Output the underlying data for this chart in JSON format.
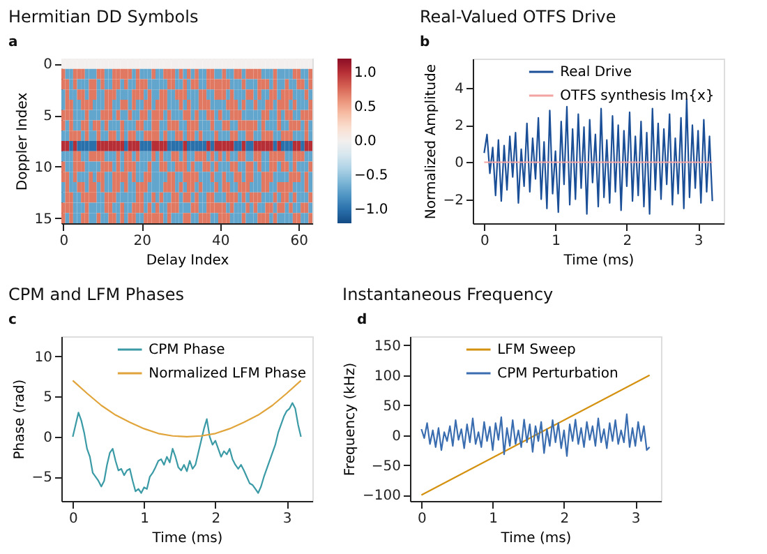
{
  "chart_data": [
    {
      "type": "heatmap",
      "title": "Hermitian DD Symbols",
      "xlabel": "Delay Index",
      "ylabel": "Doppler Index",
      "annotations": [
        "a"
      ],
      "xlim": [
        -0.5,
        63.5
      ],
      "xticks": [
        0,
        20,
        40,
        60
      ],
      "ylim": [
        15.5,
        -0.5
      ],
      "yticks": [
        0,
        5,
        10,
        15
      ],
      "clim": [
        -1.2,
        1.2
      ],
      "cticks": [
        {
          "value": -1,
          "label": "−1.0"
        },
        {
          "value": -0.5,
          "label": "−0.5"
        },
        {
          "value": 0,
          "label": "0.0"
        },
        {
          "value": 0.5,
          "label": "0.5"
        },
        {
          "value": 1,
          "label": "1.0"
        }
      ],
      "cells": [
        [
          0,
          0,
          0,
          0,
          0,
          0,
          0,
          0,
          0,
          0,
          0,
          0,
          0,
          0,
          0,
          0,
          0,
          0,
          0,
          0,
          0,
          0,
          0,
          0,
          0,
          0,
          0,
          0,
          0,
          0,
          0,
          0,
          0,
          0,
          0,
          0,
          0,
          0,
          0,
          0,
          0,
          0,
          0,
          0,
          0,
          0,
          0,
          0,
          0,
          0,
          0,
          0,
          0,
          0,
          0,
          0,
          0,
          0,
          0,
          0,
          0,
          0,
          0,
          0
        ],
        [
          0.7,
          -0.7,
          -0.7,
          0.7,
          0.7,
          0.7,
          -0.7,
          -0.7,
          -0.7,
          0.7,
          0.7,
          -0.7,
          -0.7,
          0.7,
          0.7,
          0.7,
          0.7,
          0.7,
          -0.7,
          0.7,
          -0.7,
          -0.7,
          -0.7,
          0.7,
          -0.7,
          -0.7,
          0.7,
          0.7,
          0.7,
          -0.7,
          0.7,
          -0.7,
          0.7,
          -0.7,
          0.7,
          -0.7,
          -0.7,
          0.7,
          0.7,
          -0.7,
          -0.7,
          0.7,
          -0.7,
          -0.7,
          0.7,
          0.7,
          -0.7,
          0.7,
          0.7,
          0.7,
          0.7,
          -0.7,
          -0.7,
          -0.7,
          0.7,
          -0.7,
          -0.7,
          -0.7,
          -0.7,
          0.7,
          0.7,
          -0.7,
          -0.7,
          0.7
        ],
        [
          0.7,
          0.7,
          -0.7,
          0.7,
          -0.7,
          -0.7,
          -0.7,
          0.7,
          0.7,
          -0.7,
          0.7,
          -0.7,
          -0.7,
          0.7,
          0.7,
          -0.7,
          0.7,
          -0.7,
          -0.7,
          0.7,
          0.7,
          0.7,
          -0.7,
          -0.7,
          -0.7,
          -0.7,
          -0.7,
          0.7,
          0.7,
          -0.7,
          -0.7,
          0.7,
          -0.7,
          0.7,
          0.7,
          -0.7,
          -0.7,
          0.7,
          0.7,
          0.7,
          0.7,
          0.7,
          0.7,
          -0.7,
          -0.7,
          -0.7,
          0.7,
          -0.7,
          -0.7,
          -0.7,
          0.7,
          0.7,
          0.7,
          -0.7,
          0.7,
          -0.7,
          -0.7,
          0.7,
          -0.7,
          -0.7,
          0.7,
          0.7,
          -0.7,
          0.7
        ],
        [
          -0.7,
          0.7,
          -0.7,
          -0.7,
          0.7,
          0.7,
          -0.7,
          0.7,
          0.7,
          -0.7,
          -0.7,
          0.7,
          0.7,
          0.7,
          -0.7,
          -0.7,
          -0.7,
          -0.7,
          0.7,
          0.7,
          0.7,
          -0.7,
          0.7,
          -0.7,
          -0.7,
          0.7,
          0.7,
          -0.7,
          -0.7,
          0.7,
          0.7,
          0.7,
          -0.7,
          -0.7,
          -0.7,
          0.7,
          0.7,
          -0.7,
          -0.7,
          0.7,
          0.7,
          0.7,
          -0.7,
          0.7,
          -0.7,
          -0.7,
          -0.7,
          0.7,
          0.7,
          -0.7,
          0.7,
          -0.7,
          -0.7,
          0.7,
          0.7,
          -0.7,
          0.7,
          0.7,
          0.7,
          -0.7,
          -0.7,
          -0.7,
          0.7,
          -0.7
        ],
        [
          -0.7,
          0.7,
          0.7,
          -0.7,
          -0.7,
          0.7,
          0.7,
          0.7,
          -0.7,
          -0.7,
          -0.7,
          0.7,
          0.7,
          -0.7,
          -0.7,
          0.7,
          0.7,
          -0.7,
          0.7,
          -0.7,
          -0.7,
          0.7,
          0.7,
          -0.7,
          0.7,
          0.7,
          0.7,
          -0.7,
          -0.7,
          -0.7,
          0.7,
          -0.7,
          0.7,
          -0.7,
          -0.7,
          0.7,
          0.7,
          0.7,
          -0.7,
          -0.7,
          -0.7,
          -0.7,
          0.7,
          0.7,
          0.7,
          -0.7,
          0.7,
          -0.7,
          -0.7,
          0.7,
          -0.7,
          -0.7,
          0.7,
          0.7,
          -0.7,
          0.7,
          0.7,
          0.7,
          -0.7,
          0.7,
          -0.7,
          -0.7,
          -0.7,
          0.7
        ],
        [
          0.7,
          0.7,
          0.7,
          -0.7,
          -0.7,
          -0.7,
          0.7,
          -0.7,
          -0.7,
          -0.7,
          0.7,
          0.7,
          0.7,
          -0.7,
          0.7,
          -0.7,
          -0.7,
          0.7,
          -0.7,
          -0.7,
          0.7,
          0.7,
          -0.7,
          0.7,
          0.7,
          0.7,
          -0.7,
          0.7,
          -0.7,
          -0.7,
          -0.7,
          0.7,
          0.7,
          -0.7,
          0.7,
          -0.7,
          -0.7,
          0.7,
          0.7,
          -0.7,
          0.7,
          -0.7,
          -0.7,
          0.7,
          0.7,
          0.7,
          -0.7,
          -0.7,
          -0.7,
          -0.7,
          -0.7,
          0.7,
          0.7,
          -0.7,
          -0.7,
          0.7,
          -0.7,
          0.7,
          0.7,
          -0.7,
          -0.7,
          0.7,
          0.7,
          0.7
        ],
        [
          0.7,
          -0.7,
          0.7,
          -0.7,
          -0.7,
          0.7,
          0.7,
          -0.7,
          0.7,
          0.7,
          -0.7,
          0.7,
          -0.7,
          -0.7,
          -0.7,
          0.7,
          -0.7,
          -0.7,
          -0.7,
          0.7,
          0.7,
          -0.7,
          -0.7,
          0.7,
          0.7,
          -0.7,
          -0.7,
          0.7,
          0.7,
          0.7,
          -0.7,
          -0.7,
          0.7,
          0.7,
          0.7,
          -0.7,
          -0.7,
          -0.7,
          0.7,
          -0.7,
          -0.7,
          0.7,
          0.7,
          -0.7,
          -0.7,
          0.7,
          0.7,
          0.7,
          0.7,
          0.7,
          -0.7,
          0.7,
          -0.7,
          -0.7,
          -0.7,
          0.7,
          -0.7,
          -0.7,
          0.7,
          0.7,
          0.7,
          -0.7,
          0.7,
          -0.7
        ],
        [
          -0.7,
          -0.7,
          0.7,
          0.7,
          0.7,
          -0.7,
          0.7,
          -0.7,
          -0.7,
          0.7,
          -0.7,
          -0.7,
          0.7,
          0.7,
          -0.7,
          0.7,
          -0.7,
          0.7,
          0.7,
          -0.7,
          -0.7,
          0.7,
          0.7,
          0.7,
          0.7,
          -0.7,
          0.7,
          -0.7,
          -0.7,
          0.7,
          0.7,
          -0.7,
          0.7,
          0.7,
          -0.7,
          0.7,
          -0.7,
          -0.7,
          -0.7,
          0.7,
          -0.7,
          -0.7,
          -0.7,
          0.7,
          0.7,
          -0.7,
          -0.7,
          0.7,
          0.7,
          -0.7,
          -0.7,
          0.7,
          0.7,
          0.7,
          -0.7,
          -0.7,
          0.7,
          0.7,
          0.7,
          -0.7,
          -0.7,
          -0.7,
          0.7,
          -0.7
        ],
        [
          1,
          1,
          -1,
          1,
          -1,
          -1,
          -1,
          -1,
          -1,
          1,
          1,
          1,
          1,
          1,
          1,
          1,
          -1,
          1,
          1,
          1,
          -1,
          -1,
          -1,
          1,
          1,
          1,
          1,
          -1,
          -1,
          -1,
          -1,
          1,
          -1,
          -1,
          -1,
          -1,
          -1,
          1,
          -1,
          1,
          1,
          1,
          1,
          1,
          -1,
          -1,
          1,
          -1,
          -1,
          1,
          1,
          1,
          1,
          1,
          -1,
          1,
          -1,
          -1,
          -1,
          1,
          1,
          -1,
          1,
          1
        ],
        [
          -0.7,
          -0.7,
          -0.7,
          0.7,
          0.7,
          -0.7,
          -0.7,
          0.7,
          0.7,
          0.7,
          0.7,
          -0.7,
          -0.7,
          -0.7,
          0.7,
          -0.7,
          0.7,
          0.7,
          -0.7,
          0.7,
          -0.7,
          -0.7,
          -0.7,
          0.7,
          -0.7,
          0.7,
          -0.7,
          -0.7,
          0.7,
          0.7,
          -0.7,
          0.7,
          -0.7,
          -0.7,
          0.7,
          0.7,
          0.7,
          -0.7,
          0.7,
          -0.7,
          0.7,
          -0.7,
          0.7,
          -0.7,
          -0.7,
          0.7,
          0.7,
          -0.7,
          -0.7,
          0.7,
          0.7,
          -0.7,
          -0.7,
          0.7,
          0.7,
          0.7,
          0.7,
          -0.7,
          -0.7,
          0.7,
          0.7,
          0.7,
          -0.7,
          -0.7
        ],
        [
          0.7,
          -0.7,
          -0.7,
          0.7,
          0.7,
          0.7,
          -0.7,
          -0.7,
          -0.7,
          -0.7,
          0.7,
          0.7,
          0.7,
          -0.7,
          0.7,
          -0.7,
          0.7,
          0.7,
          0.7,
          -0.7,
          -0.7,
          -0.7,
          0.7,
          -0.7,
          -0.7,
          0.7,
          0.7,
          -0.7,
          -0.7,
          0.7,
          0.7,
          0.7,
          -0.7,
          0.7,
          -0.7,
          -0.7,
          0.7,
          0.7,
          -0.7,
          0.7,
          -0.7,
          -0.7,
          -0.7,
          0.7,
          0.7,
          -0.7,
          -0.7,
          0.7,
          0.7,
          -0.7,
          0.7,
          -0.7,
          -0.7,
          0.7,
          0.7,
          -0.7,
          0.7,
          0.7,
          -0.7,
          0.7,
          -0.7,
          -0.7,
          -0.7,
          0.7
        ],
        [
          0.7,
          0.7,
          -0.7,
          0.7,
          -0.7,
          -0.7,
          -0.7,
          0.7,
          -0.7,
          0.7,
          0.7,
          -0.7,
          -0.7,
          0.7,
          0.7,
          0.7,
          0.7,
          -0.7,
          0.7,
          -0.7,
          -0.7,
          0.7,
          0.7,
          -0.7,
          -0.7,
          -0.7,
          -0.7,
          0.7,
          0.7,
          -0.7,
          -0.7,
          0.7,
          0.7,
          0.7,
          0.7,
          -0.7,
          -0.7,
          -0.7,
          0.7,
          -0.7,
          -0.7,
          0.7,
          -0.7,
          -0.7,
          0.7,
          0.7,
          -0.7,
          0.7,
          0.7,
          -0.7,
          -0.7,
          0.7,
          0.7,
          0.7,
          -0.7,
          -0.7,
          -0.7,
          -0.7,
          0.7,
          0.7,
          0.7,
          -0.7,
          0.7,
          -0.7
        ],
        [
          -0.7,
          0.7,
          -0.7,
          -0.7,
          0.7,
          0.7,
          -0.7,
          0.7,
          0.7,
          -0.7,
          0.7,
          -0.7,
          -0.7,
          0.7,
          0.7,
          -0.7,
          0.7,
          -0.7,
          -0.7,
          0.7,
          0.7,
          0.7,
          -0.7,
          -0.7,
          -0.7,
          -0.7,
          0.7,
          0.7,
          0.7,
          -0.7,
          0.7,
          -0.7,
          0.7,
          0.7,
          -0.7,
          0.7,
          -0.7,
          -0.7,
          -0.7,
          0.7,
          -0.7,
          0.7,
          0.7,
          -0.7,
          -0.7,
          0.7,
          0.7,
          0.7,
          -0.7,
          -0.7,
          -0.7,
          0.7,
          0.7,
          -0.7,
          -0.7,
          0.7,
          0.7,
          0.7,
          0.7,
          -0.7,
          -0.7,
          -0.7,
          0.7,
          -0.7
        ],
        [
          -0.7,
          0.7,
          0.7,
          -0.7,
          -0.7,
          0.7,
          0.7,
          0.7,
          0.7,
          -0.7,
          -0.7,
          0.7,
          0.7,
          0.7,
          -0.7,
          -0.7,
          -0.7,
          -0.7,
          -0.7,
          0.7,
          0.7,
          -0.7,
          -0.7,
          0.7,
          -0.7,
          0.7,
          -0.7,
          -0.7,
          0.7,
          0.7,
          -0.7,
          0.7,
          0.7,
          -0.7,
          0.7,
          -0.7,
          -0.7,
          0.7,
          0.7,
          -0.7,
          -0.7,
          -0.7,
          0.7,
          0.7,
          0.7,
          -0.7,
          0.7,
          -0.7,
          0.7,
          0.7,
          0.7,
          -0.7,
          -0.7,
          -0.7,
          0.7,
          -0.7,
          0.7,
          0.7,
          -0.7,
          0.7,
          -0.7,
          -0.7,
          -0.7,
          0.7
        ],
        [
          0.7,
          0.7,
          0.7,
          -0.7,
          -0.7,
          -0.7,
          0.7,
          -0.7,
          -0.7,
          -0.7,
          -0.7,
          0.7,
          0.7,
          -0.7,
          -0.7,
          0.7,
          -0.7,
          -0.7,
          0.7,
          0.7,
          0.7,
          -0.7,
          0.7,
          -0.7,
          0.7,
          -0.7,
          -0.7,
          0.7,
          0.7,
          0.7,
          -0.7,
          -0.7,
          -0.7,
          0.7,
          0.7,
          -0.7,
          -0.7,
          0.7,
          0.7,
          0.7,
          0.7,
          0.7,
          -0.7,
          0.7,
          -0.7,
          -0.7,
          -0.7,
          0.7,
          -0.7,
          0.7,
          -0.7,
          -0.7,
          0.7,
          0.7,
          -0.7,
          0.7,
          0.7,
          -0.7,
          0.7,
          -0.7,
          -0.7,
          0.7,
          0.7,
          -0.7
        ],
        [
          0.7,
          -0.7,
          0.7,
          -0.7,
          -0.7,
          0.7,
          0.7,
          -0.7,
          -0.7,
          0.7,
          -0.7,
          -0.7,
          0.7,
          0.7,
          -0.7,
          0.7,
          -0.7,
          0.7,
          0.7,
          -0.7,
          -0.7,
          0.7,
          0.7,
          0.7,
          0.7,
          0.7,
          -0.7,
          0.7,
          -0.7,
          -0.7,
          -0.7,
          0.7,
          0.7,
          -0.7,
          -0.7,
          0.7,
          0.7,
          0.7,
          -0.7,
          -0.7,
          0.7,
          0.7,
          0.7,
          -0.7,
          -0.7,
          -0.7,
          0.7,
          -0.7,
          -0.7,
          -0.7,
          0.7,
          0.7,
          0.7,
          -0.7,
          0.7,
          -0.7,
          -0.7,
          -0.7,
          -0.7,
          0.7,
          0.7,
          -0.7,
          -0.7,
          0.7
        ]
      ]
    },
    {
      "type": "line",
      "title": "Real-Valued OTFS Drive",
      "xlabel": "Time (ms)",
      "ylabel": "Normalized Amplitude",
      "annotations": [
        "b"
      ],
      "legend": "top",
      "xlim": [
        -0.16,
        3.36
      ],
      "xticks": [
        0,
        1,
        2,
        3
      ],
      "ylim": [
        -3.3,
        5.6
      ],
      "yticks": [
        {
          "value": -2,
          "label": "−2"
        },
        0,
        2,
        4
      ],
      "series": [
        {
          "name": "Real Drive",
          "color": "#1a4f97",
          "x": [
            0,
            0.04,
            0.08,
            0.12,
            0.16,
            0.2,
            0.24,
            0.28,
            0.32,
            0.36,
            0.4,
            0.44,
            0.48,
            0.52,
            0.56,
            0.6,
            0.64,
            0.68,
            0.72,
            0.76,
            0.8,
            0.84,
            0.88,
            0.92,
            0.96,
            1,
            1.04,
            1.08,
            1.12,
            1.16,
            1.2,
            1.24,
            1.28,
            1.32,
            1.36,
            1.4,
            1.44,
            1.48,
            1.52,
            1.56,
            1.6,
            1.64,
            1.68,
            1.72,
            1.76,
            1.8,
            1.84,
            1.88,
            1.92,
            1.96,
            2,
            2.04,
            2.08,
            2.12,
            2.16,
            2.2,
            2.24,
            2.28,
            2.32,
            2.36,
            2.4,
            2.44,
            2.48,
            2.52,
            2.56,
            2.6,
            2.64,
            2.68,
            2.72,
            2.76,
            2.8,
            2.84,
            2.88,
            2.92,
            2.96,
            3,
            3.04,
            3.08,
            3.12,
            3.16,
            3.2
          ],
          "values": [
            0.5,
            1.5,
            -0.6,
            0.8,
            -1.8,
            1.2,
            -2.1,
            0.9,
            -1.5,
            1.4,
            -0.8,
            1.6,
            -2.2,
            0.7,
            -1.3,
            2.1,
            -1.6,
            1.3,
            -0.9,
            2.4,
            -2.0,
            1.1,
            -2.5,
            2.8,
            -1.7,
            0.6,
            -2.7,
            2.2,
            -1.2,
            3.0,
            -2.3,
            1.8,
            -2.0,
            2.6,
            -1.4,
            1.9,
            -2.8,
            2.3,
            -1.1,
            1.5,
            -2.4,
            2.9,
            -1.9,
            1.2,
            -2.2,
            2.5,
            -1.6,
            2.0,
            -2.6,
            1.7,
            -1.3,
            2.7,
            -2.1,
            1.4,
            -1.8,
            2.2,
            -2.4,
            1.6,
            -2.8,
            2.9,
            -1.5,
            2.1,
            -2.0,
            1.8,
            -1.2,
            2.6,
            -2.3,
            1.3,
            -1.7,
            2.4,
            -2.5,
            3.4,
            -1.9,
            2.0,
            -1.4,
            1.7,
            -2.2,
            2.3,
            -1.6,
            1.4,
            -2.1
          ]
        },
        {
          "name": "OTFS synthesis Im{x}",
          "color": "#f4a3a3",
          "x": [
            0,
            3.2
          ],
          "values": [
            0,
            0
          ]
        }
      ]
    },
    {
      "type": "line",
      "title": "CPM and LFM Phases",
      "xlabel": "Time (ms)",
      "ylabel": "Phase (rad)",
      "annotations": [
        "c"
      ],
      "legend": "top",
      "xlim": [
        -0.16,
        3.36
      ],
      "xticks": [
        0,
        1,
        2,
        3
      ],
      "ylim": [
        -8,
        12.5
      ],
      "yticks": [
        {
          "value": -5,
          "label": "−5"
        },
        0,
        5,
        10
      ],
      "series": [
        {
          "name": "CPM Phase",
          "color": "#3a9aa5",
          "x": [
            0,
            0.04,
            0.08,
            0.12,
            0.16,
            0.2,
            0.24,
            0.28,
            0.32,
            0.36,
            0.4,
            0.44,
            0.48,
            0.52,
            0.56,
            0.6,
            0.64,
            0.68,
            0.72,
            0.76,
            0.8,
            0.84,
            0.88,
            0.92,
            0.96,
            1,
            1.04,
            1.08,
            1.12,
            1.16,
            1.2,
            1.24,
            1.28,
            1.32,
            1.36,
            1.4,
            1.44,
            1.48,
            1.52,
            1.56,
            1.6,
            1.64,
            1.68,
            1.72,
            1.76,
            1.8,
            1.84,
            1.88,
            1.92,
            1.96,
            2,
            2.04,
            2.08,
            2.12,
            2.16,
            2.2,
            2.24,
            2.28,
            2.32,
            2.36,
            2.4,
            2.44,
            2.48,
            2.52,
            2.56,
            2.6,
            2.64,
            2.68,
            2.72,
            2.76,
            2.8,
            2.84,
            2.88,
            2.92,
            2.96,
            3,
            3.04,
            3.08,
            3.12,
            3.16,
            3.2
          ],
          "values": [
            0,
            1.5,
            3,
            2,
            0.5,
            -1.5,
            -2.5,
            -4.5,
            -5,
            -5.5,
            -6.2,
            -5.5,
            -3.5,
            -2,
            -1.5,
            -3,
            -4.2,
            -4,
            -4.8,
            -4.2,
            -4,
            -5.5,
            -6.8,
            -6.5,
            -7,
            -6.3,
            -6.5,
            -5,
            -4.5,
            -3.8,
            -3,
            -2.8,
            -3.5,
            -2.5,
            -3.2,
            -1.5,
            -2.5,
            -3.8,
            -4.2,
            -3.5,
            -4.3,
            -3,
            -4,
            -3.5,
            -2,
            -0.5,
            1,
            2.2,
            0,
            -1,
            -0.5,
            -1.5,
            -2.5,
            -1.8,
            -2.2,
            -1.5,
            -2.8,
            -3.5,
            -4,
            -3.5,
            -4.2,
            -5,
            -5.8,
            -6,
            -6.5,
            -7,
            -6.2,
            -5,
            -4,
            -3,
            -2,
            -1,
            0.5,
            1.5,
            2.5,
            3.2,
            3.5,
            4.2,
            3.5,
            1.5,
            0
          ]
        },
        {
          "name": "Normalized LFM Phase",
          "color": "#e1a43a",
          "x": [
            0,
            0.2,
            0.4,
            0.6,
            0.8,
            1,
            1.2,
            1.4,
            1.6,
            1.8,
            2,
            2.2,
            2.4,
            2.6,
            2.8,
            3,
            3.2
          ],
          "values": [
            7,
            5.4,
            3.9,
            2.7,
            1.8,
            1,
            0.4,
            0.1,
            0,
            0.1,
            0.4,
            1,
            1.8,
            2.7,
            3.9,
            5.4,
            7
          ]
        }
      ]
    },
    {
      "type": "line",
      "title": "Instantaneous Frequency",
      "xlabel": "Time (ms)",
      "ylabel": "Frequency (kHz)",
      "annotations": [
        "d"
      ],
      "legend": "top",
      "xlim": [
        -0.16,
        3.36
      ],
      "xticks": [
        0,
        1,
        2,
        3
      ],
      "ylim": [
        -110,
        165
      ],
      "yticks": [
        {
          "value": -100,
          "label": "−100"
        },
        {
          "value": -50,
          "label": "−50"
        },
        0,
        50,
        100,
        150
      ],
      "series": [
        {
          "name": "LFM Sweep",
          "color": "#d4900f",
          "x": [
            0,
            3.2
          ],
          "values": [
            -100,
            100
          ]
        },
        {
          "name": "CPM Perturbation",
          "color": "#3a6db0",
          "x": [
            0,
            0.04,
            0.08,
            0.12,
            0.16,
            0.2,
            0.24,
            0.28,
            0.32,
            0.36,
            0.4,
            0.44,
            0.48,
            0.52,
            0.56,
            0.6,
            0.64,
            0.68,
            0.72,
            0.76,
            0.8,
            0.84,
            0.88,
            0.92,
            0.96,
            1,
            1.04,
            1.08,
            1.12,
            1.16,
            1.2,
            1.24,
            1.28,
            1.32,
            1.36,
            1.4,
            1.44,
            1.48,
            1.52,
            1.56,
            1.6,
            1.64,
            1.68,
            1.72,
            1.76,
            1.8,
            1.84,
            1.88,
            1.92,
            1.96,
            2,
            2.04,
            2.08,
            2.12,
            2.16,
            2.2,
            2.24,
            2.28,
            2.32,
            2.36,
            2.4,
            2.44,
            2.48,
            2.52,
            2.56,
            2.6,
            2.64,
            2.68,
            2.72,
            2.76,
            2.8,
            2.84,
            2.88,
            2.92,
            2.96,
            3,
            3.04,
            3.08,
            3.12,
            3.16,
            3.2
          ],
          "values": [
            10,
            -5,
            20,
            -15,
            8,
            -20,
            12,
            -25,
            5,
            -10,
            15,
            -18,
            25,
            -8,
            10,
            -22,
            18,
            -12,
            28,
            -15,
            5,
            -20,
            22,
            -10,
            14,
            -25,
            20,
            -8,
            30,
            -32,
            12,
            -18,
            25,
            -15,
            8,
            -20,
            26,
            -12,
            18,
            -28,
            15,
            -10,
            22,
            -30,
            10,
            -18,
            25,
            -12,
            20,
            -22,
            8,
            -35,
            18,
            -10,
            26,
            -15,
            12,
            -20,
            22,
            -8,
            15,
            -18,
            28,
            -12,
            10,
            -22,
            20,
            -10,
            25,
            -15,
            8,
            -12,
            35,
            -20,
            12,
            -18,
            22,
            -10,
            15,
            -25,
            -20
          ]
        }
      ]
    }
  ]
}
